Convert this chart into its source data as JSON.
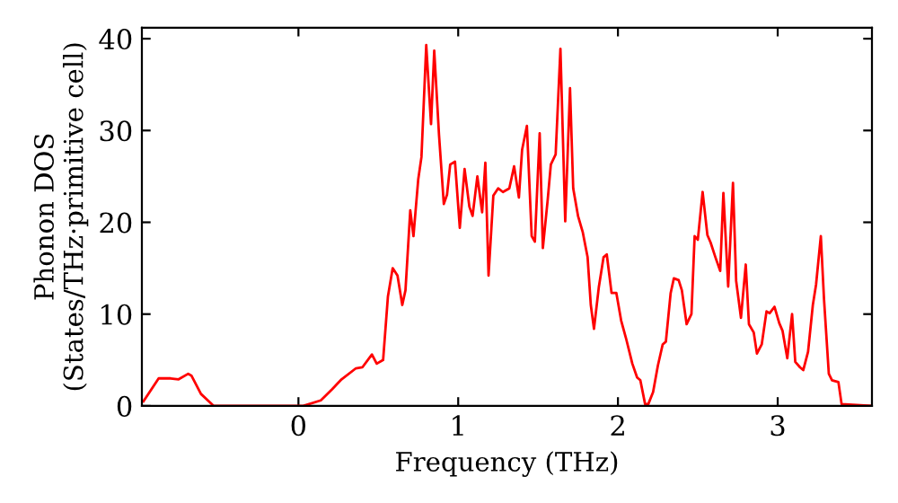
{
  "chart_data": {
    "type": "line",
    "xlabel": "Frequency (THz)",
    "ylabel": "Phonon DOS\n(States/THz·primitive cell)",
    "xlim": [
      -0.98,
      3.59
    ],
    "ylim": [
      0,
      41.2
    ],
    "xticks": [
      0,
      1,
      2,
      3
    ],
    "yticks": [
      0,
      10,
      20,
      30,
      40
    ],
    "grid": false,
    "legend": false,
    "marker": "none",
    "line_style": "solid",
    "series": [
      {
        "color": "#ff0000",
        "x": [
          -0.97,
          -0.875,
          -0.8,
          -0.75,
          -0.69,
          -0.67,
          -0.61,
          -0.53,
          0.03,
          0.14,
          0.21,
          0.27,
          0.36,
          0.4,
          0.46,
          0.49,
          0.53,
          0.56,
          0.59,
          0.62,
          0.65,
          0.67,
          0.7,
          0.72,
          0.75,
          0.77,
          0.8,
          0.83,
          0.85,
          0.88,
          0.91,
          0.93,
          0.95,
          0.98,
          1.01,
          1.04,
          1.07,
          1.09,
          1.12,
          1.15,
          1.17,
          1.19,
          1.22,
          1.25,
          1.28,
          1.32,
          1.35,
          1.38,
          1.4,
          1.43,
          1.46,
          1.48,
          1.51,
          1.53,
          1.56,
          1.58,
          1.61,
          1.64,
          1.67,
          1.7,
          1.72,
          1.75,
          1.78,
          1.81,
          1.83,
          1.85,
          1.88,
          1.91,
          1.93,
          1.96,
          1.99,
          2.02,
          2.05,
          2.09,
          2.12,
          2.14,
          2.17,
          2.19,
          2.22,
          2.25,
          2.28,
          2.3,
          2.33,
          2.35,
          2.38,
          2.4,
          2.43,
          2.46,
          2.48,
          2.5,
          2.53,
          2.56,
          2.58,
          2.61,
          2.64,
          2.66,
          2.69,
          2.72,
          2.74,
          2.77,
          2.8,
          2.82,
          2.85,
          2.87,
          2.9,
          2.93,
          2.95,
          2.98,
          3.01,
          3.03,
          3.06,
          3.09,
          3.11,
          3.14,
          3.16,
          3.19,
          3.22,
          3.24,
          3.27,
          3.29,
          3.32,
          3.34,
          3.38,
          3.4,
          3.59
        ],
        "values": [
          0.5,
          3.0,
          3.0,
          2.9,
          3.5,
          3.3,
          1.3,
          0,
          0,
          0.6,
          1.8,
          2.9,
          4.1,
          4.2,
          5.6,
          4.6,
          5.0,
          11.9,
          15.0,
          14.2,
          11.0,
          12.6,
          21.3,
          18.5,
          24.7,
          27.1,
          39.3,
          30.7,
          38.7,
          29.5,
          22.0,
          23.0,
          26.3,
          26.6,
          19.4,
          25.8,
          21.7,
          20.7,
          25.0,
          21.1,
          26.5,
          14.2,
          22.9,
          23.7,
          23.3,
          23.7,
          26.1,
          22.7,
          27.9,
          30.5,
          18.5,
          17.9,
          29.7,
          17.2,
          22.4,
          26.3,
          27.4,
          38.9,
          20.1,
          34.6,
          23.7,
          20.7,
          18.9,
          16.2,
          11.0,
          8.4,
          12.9,
          16.2,
          16.5,
          12.3,
          12.3,
          9.3,
          7.4,
          4.6,
          3.1,
          2.8,
          0.2,
          0.2,
          1.5,
          4.4,
          6.7,
          7.0,
          12.3,
          13.9,
          13.7,
          12.6,
          8.9,
          10.0,
          18.5,
          18.1,
          23.3,
          18.6,
          17.8,
          16.2,
          14.7,
          23.2,
          13.0,
          24.3,
          13.6,
          9.6,
          15.4,
          8.9,
          8.0,
          5.7,
          6.7,
          10.3,
          10.1,
          10.8,
          9.0,
          8.2,
          5.2,
          10.0,
          4.8,
          4.2,
          3.9,
          5.9,
          11.0,
          13.2,
          18.5,
          11.6,
          3.5,
          2.8,
          2.6,
          0.2,
          0
        ]
      }
    ]
  }
}
